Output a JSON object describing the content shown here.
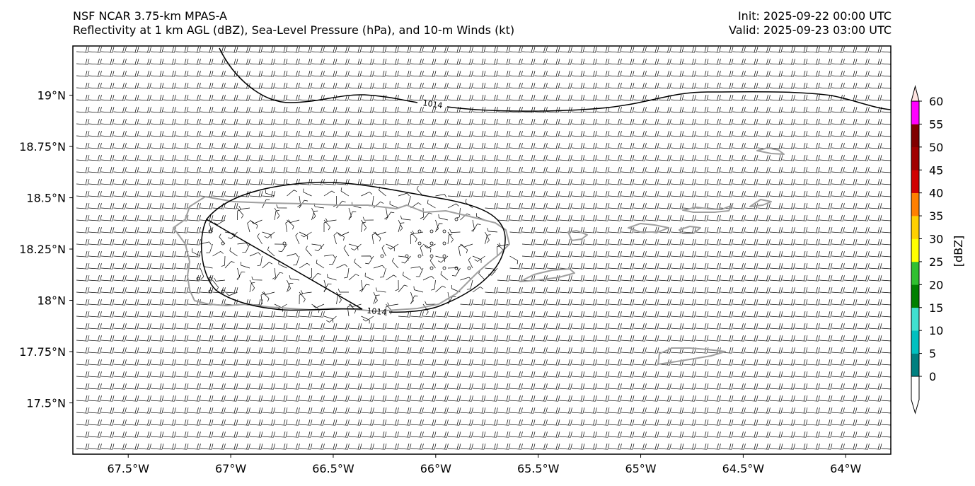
{
  "header": {
    "title_line1": "NSF NCAR 3.75-km MPAS-A",
    "title_line2": "Reflectivity at 1 km AGL (dBZ), Sea-Level Pressure (hPa), and 10-m Winds (kt)",
    "init": "Init: 2025-09-22 00:00 UTC",
    "valid": "Valid: 2025-09-23 03:00 UTC"
  },
  "map": {
    "lon_range": [
      -67.77,
      -63.78
    ],
    "lat_range": [
      17.25,
      19.24
    ],
    "lon_ticks": [
      {
        "value": -67.5,
        "label": "67.5°W"
      },
      {
        "value": -67.0,
        "label": "67°W"
      },
      {
        "value": -66.5,
        "label": "66.5°W"
      },
      {
        "value": -66.0,
        "label": "66°W"
      },
      {
        "value": -65.5,
        "label": "65.5°W"
      },
      {
        "value": -65.0,
        "label": "65°W"
      },
      {
        "value": -64.5,
        "label": "64.5°W"
      },
      {
        "value": -64.0,
        "label": "64°W"
      }
    ],
    "lat_ticks": [
      {
        "value": 19.0,
        "label": "19°N"
      },
      {
        "value": 18.75,
        "label": "18.75°N"
      },
      {
        "value": 18.5,
        "label": "18.5°N"
      },
      {
        "value": 18.25,
        "label": "18.25°N"
      },
      {
        "value": 18.0,
        "label": "18°N"
      },
      {
        "value": 17.75,
        "label": "17.75°N"
      },
      {
        "value": 17.5,
        "label": "17.5°N"
      }
    ],
    "isobar_label_north": "1014",
    "isobar_label_south": "1014",
    "coastline_color": "#a0a0a0",
    "isobar_color": "#000000"
  },
  "colorbar": {
    "label": "[dBZ]",
    "tick_labels": [
      "0",
      "5",
      "10",
      "15",
      "20",
      "25",
      "30",
      "35",
      "40",
      "45",
      "50",
      "55",
      "60"
    ],
    "colors": [
      "#008080",
      "#00c0c0",
      "#40e0d0",
      "#008000",
      "#30c030",
      "#ffff00",
      "#ffd000",
      "#ff8000",
      "#d00000",
      "#a00000",
      "#800000",
      "#ff00ff",
      "#ffe4e1"
    ]
  }
}
